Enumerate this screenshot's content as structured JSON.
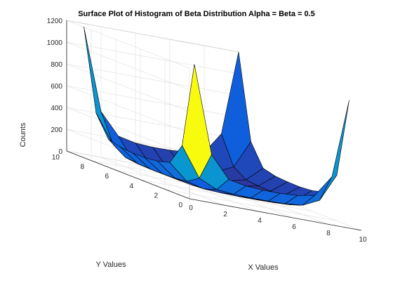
{
  "chart_data": {
    "type": "surface",
    "title": "Surface Plot of Histogram of Beta Distribution Alpha = Beta = 0.5",
    "xlabel": "X Values",
    "ylabel": "Y Values",
    "zlabel": "Counts",
    "xlim": [
      0,
      10
    ],
    "ylim": [
      0,
      10
    ],
    "zlim": [
      0,
      1200
    ],
    "xticks": [
      "0",
      "2",
      "4",
      "6",
      "8",
      "10"
    ],
    "yticks": [
      "0",
      "2",
      "4",
      "6",
      "8",
      "10"
    ],
    "zticks": [
      "0",
      "200",
      "400",
      "600",
      "800",
      "1000",
      "1200"
    ],
    "grid": true,
    "colormap": "parula",
    "x": [
      1,
      2,
      3,
      4,
      5,
      6,
      7,
      8,
      9,
      10
    ],
    "y": [
      1,
      2,
      3,
      4,
      5,
      6,
      7,
      8,
      9,
      10
    ],
    "z": [
      [
        1220,
        420,
        220,
        190,
        180,
        180,
        190,
        220,
        420,
        1150
      ],
      [
        430,
        160,
        85,
        70,
        65,
        65,
        70,
        85,
        160,
        420
      ],
      [
        230,
        85,
        45,
        38,
        35,
        35,
        38,
        45,
        85,
        220
      ],
      [
        200,
        72,
        38,
        30,
        28,
        28,
        30,
        38,
        72,
        190
      ],
      [
        185,
        68,
        36,
        29,
        25,
        26,
        29,
        36,
        68,
        180
      ],
      [
        185,
        68,
        36,
        29,
        26,
        25,
        29,
        36,
        68,
        182
      ],
      [
        195,
        72,
        38,
        30,
        28,
        28,
        30,
        38,
        72,
        190
      ],
      [
        225,
        85,
        45,
        38,
        35,
        35,
        38,
        45,
        85,
        220
      ],
      [
        420,
        160,
        85,
        70,
        65,
        65,
        70,
        85,
        160,
        420
      ],
      [
        1170,
        420,
        225,
        190,
        180,
        182,
        192,
        220,
        420,
        1200
      ]
    ]
  }
}
